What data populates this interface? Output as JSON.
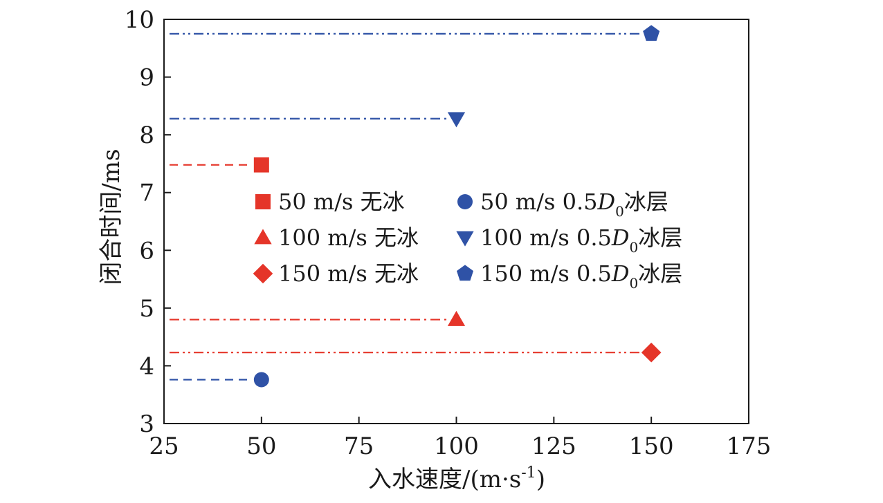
{
  "chart_data": {
    "type": "scatter",
    "xlabel": "入水速度/(m·s",
    "xlabel_sup": "-1",
    "xlabel_end": ")",
    "ylabel": "闭合时间/ms",
    "xlim": [
      25,
      175
    ],
    "ylim": [
      3,
      10
    ],
    "xticks": [
      "25",
      "50",
      "75",
      "100",
      "125",
      "150",
      "175"
    ],
    "yticks": [
      "3",
      "4",
      "5",
      "6",
      "7",
      "8",
      "9",
      "10"
    ],
    "grid": false,
    "legend_position": "center",
    "colors": {
      "red": "#e53529",
      "blue": "#2f52a6"
    },
    "series": [
      {
        "name": "50 m/s 无冰",
        "label_main": "50 m/s 无冰",
        "x": 50,
        "y": 7.48,
        "marker": "square",
        "color": "#e53529",
        "dash": "dash"
      },
      {
        "name": "50 m/s 0.5D0冰层",
        "label_main": "50 m/s 0.5",
        "label_italic": "D",
        "label_sub": "0",
        "label_end": "冰层",
        "x": 50,
        "y": 3.76,
        "marker": "circle",
        "color": "#2f52a6",
        "dash": "dash"
      },
      {
        "name": "100 m/s 无冰",
        "label_main": "100 m/s 无冰",
        "x": 100,
        "y": 4.8,
        "marker": "triangle-up",
        "color": "#e53529",
        "dash": "dashdot"
      },
      {
        "name": "100 m/s 0.5D0冰层",
        "label_main": "100 m/s 0.5",
        "label_italic": "D",
        "label_sub": "0",
        "label_end": "冰层",
        "x": 100,
        "y": 8.28,
        "marker": "triangle-down",
        "color": "#2f52a6",
        "dash": "dashdot"
      },
      {
        "name": "150 m/s 无冰",
        "label_main": "150 m/s 无冰",
        "x": 150,
        "y": 4.23,
        "marker": "diamond",
        "color": "#e53529",
        "dash": "dashdotdot"
      },
      {
        "name": "150 m/s 0.5D0冰层",
        "label_main": "150 m/s 0.5",
        "label_italic": "D",
        "label_sub": "0",
        "label_end": "冰层",
        "x": 150,
        "y": 9.75,
        "marker": "pentagon",
        "color": "#2f52a6",
        "dash": "dashdotdot"
      }
    ]
  }
}
